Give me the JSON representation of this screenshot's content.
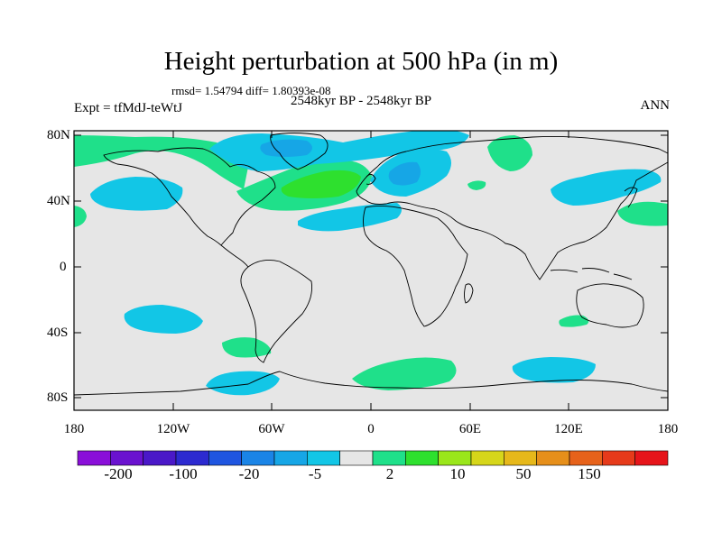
{
  "title": "Height perturbation at 500 hPa (in m)",
  "stats_line": "rmsd= 1.54794 diff= 1.80393e-08",
  "experiment": "Expt = tfMdJ-teWtJ",
  "period": "2548kyr BP - 2548kyr BP",
  "season": "ANN",
  "lat_labels": [
    "80N",
    "40N",
    "0",
    "40S",
    "80S"
  ],
  "lon_labels": [
    "180",
    "120W",
    "60W",
    "0",
    "60E",
    "120E",
    "180"
  ],
  "colorbar": {
    "colors": [
      "#8a0fd9",
      "#6a12cf",
      "#4a18c8",
      "#2c2ad0",
      "#1f55e0",
      "#1a84e6",
      "#16a6e6",
      "#12c6e6",
      "#e6e6e6",
      "#1fe08a",
      "#2ee02e",
      "#9ae61a",
      "#d6d61a",
      "#e6b81a",
      "#e68f1a",
      "#e6621a",
      "#e63a1a",
      "#e6141a"
    ],
    "tick_labels": [
      "-200",
      "-100",
      "-20",
      "-5",
      "2",
      "10",
      "50",
      "150"
    ]
  },
  "colors": {
    "neutral_fill": "#e6e6e6",
    "negative_light": "#12c6e6",
    "negative_mid": "#16a6e6",
    "negative_dark": "#1a84e6",
    "positive_light": "#1fe08a",
    "positive_mid": "#2ee02e"
  }
}
